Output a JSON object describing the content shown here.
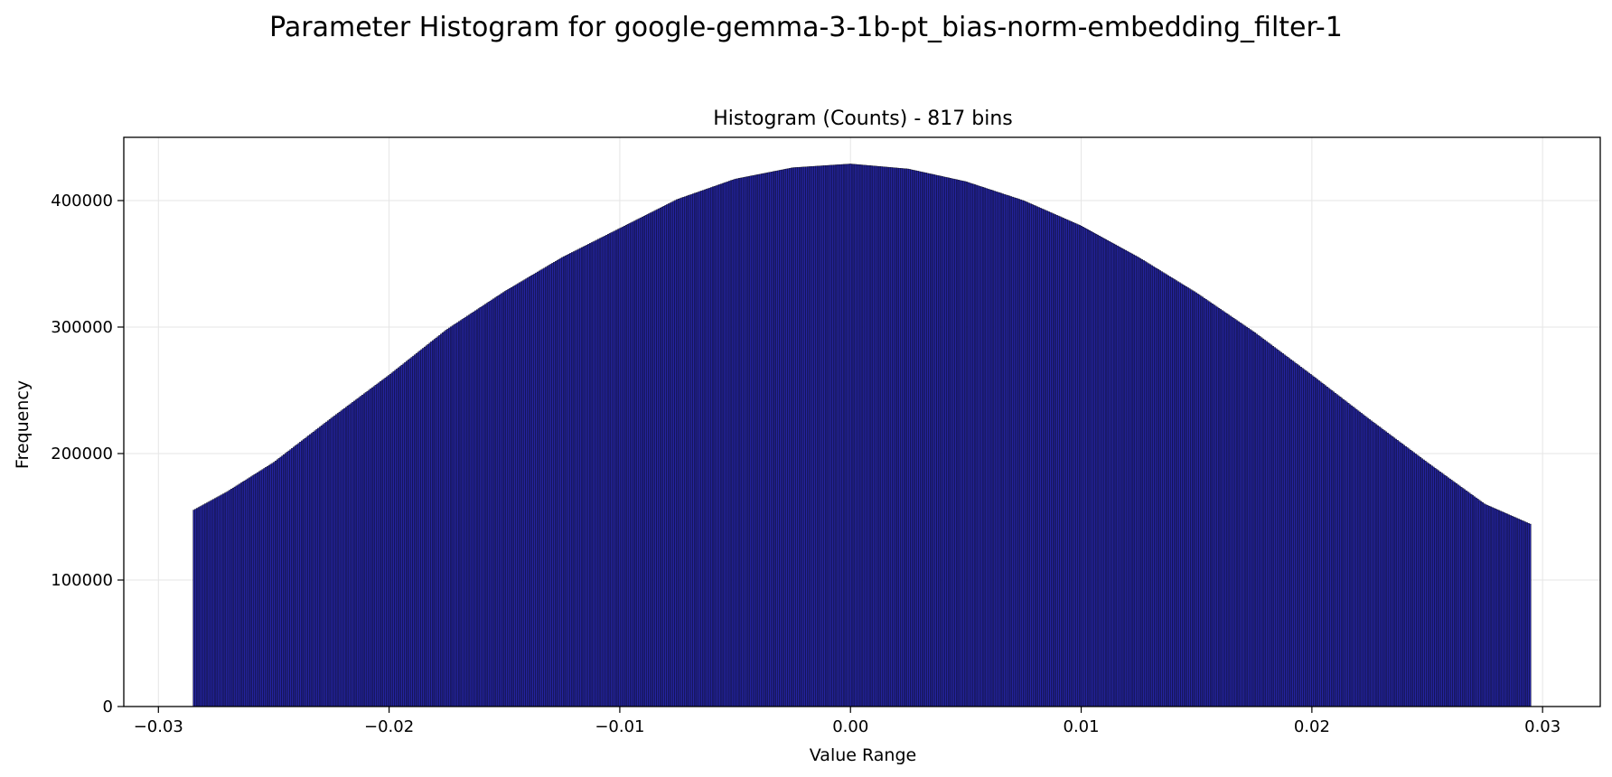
{
  "figure": {
    "suptitle": "Parameter Histogram for google-gemma-3-1b-pt_bias-norm-embedding_filter-1"
  },
  "chart_data": {
    "type": "bar",
    "title": "Histogram (Counts) - 817 bins",
    "xlabel": "Value Range",
    "ylabel": "Frequency",
    "bins": 817,
    "xlim": [
      -0.0315,
      0.0325
    ],
    "ylim": [
      0,
      450000
    ],
    "x_ticks": [
      -0.03,
      -0.02,
      -0.01,
      0.0,
      0.01,
      0.02,
      0.03
    ],
    "x_tick_labels": [
      "−0.03",
      "−0.02",
      "−0.01",
      "0.00",
      "0.01",
      "0.02",
      "0.03"
    ],
    "y_ticks": [
      0,
      100000,
      200000,
      300000,
      400000
    ],
    "y_tick_labels": [
      "0",
      "100000",
      "200000",
      "300000",
      "400000"
    ],
    "grid": true,
    "legend": "none",
    "bar_color": "#2424a0",
    "edge_color": "#000000",
    "x": [
      -0.0285,
      -0.027,
      -0.025,
      -0.0225,
      -0.02,
      -0.0175,
      -0.015,
      -0.0125,
      -0.01,
      -0.0075,
      -0.005,
      -0.0025,
      0.0,
      0.0025,
      0.005,
      0.0075,
      0.01,
      0.0125,
      0.015,
      0.0175,
      0.02,
      0.0225,
      0.025,
      0.0275,
      0.0295
    ],
    "values": [
      155000,
      170000,
      193000,
      228000,
      262000,
      298000,
      328000,
      355000,
      378000,
      401000,
      417000,
      426000,
      429000,
      425000,
      415000,
      400000,
      380000,
      355000,
      327000,
      296000,
      262000,
      227000,
      193000,
      160000,
      144000
    ]
  }
}
